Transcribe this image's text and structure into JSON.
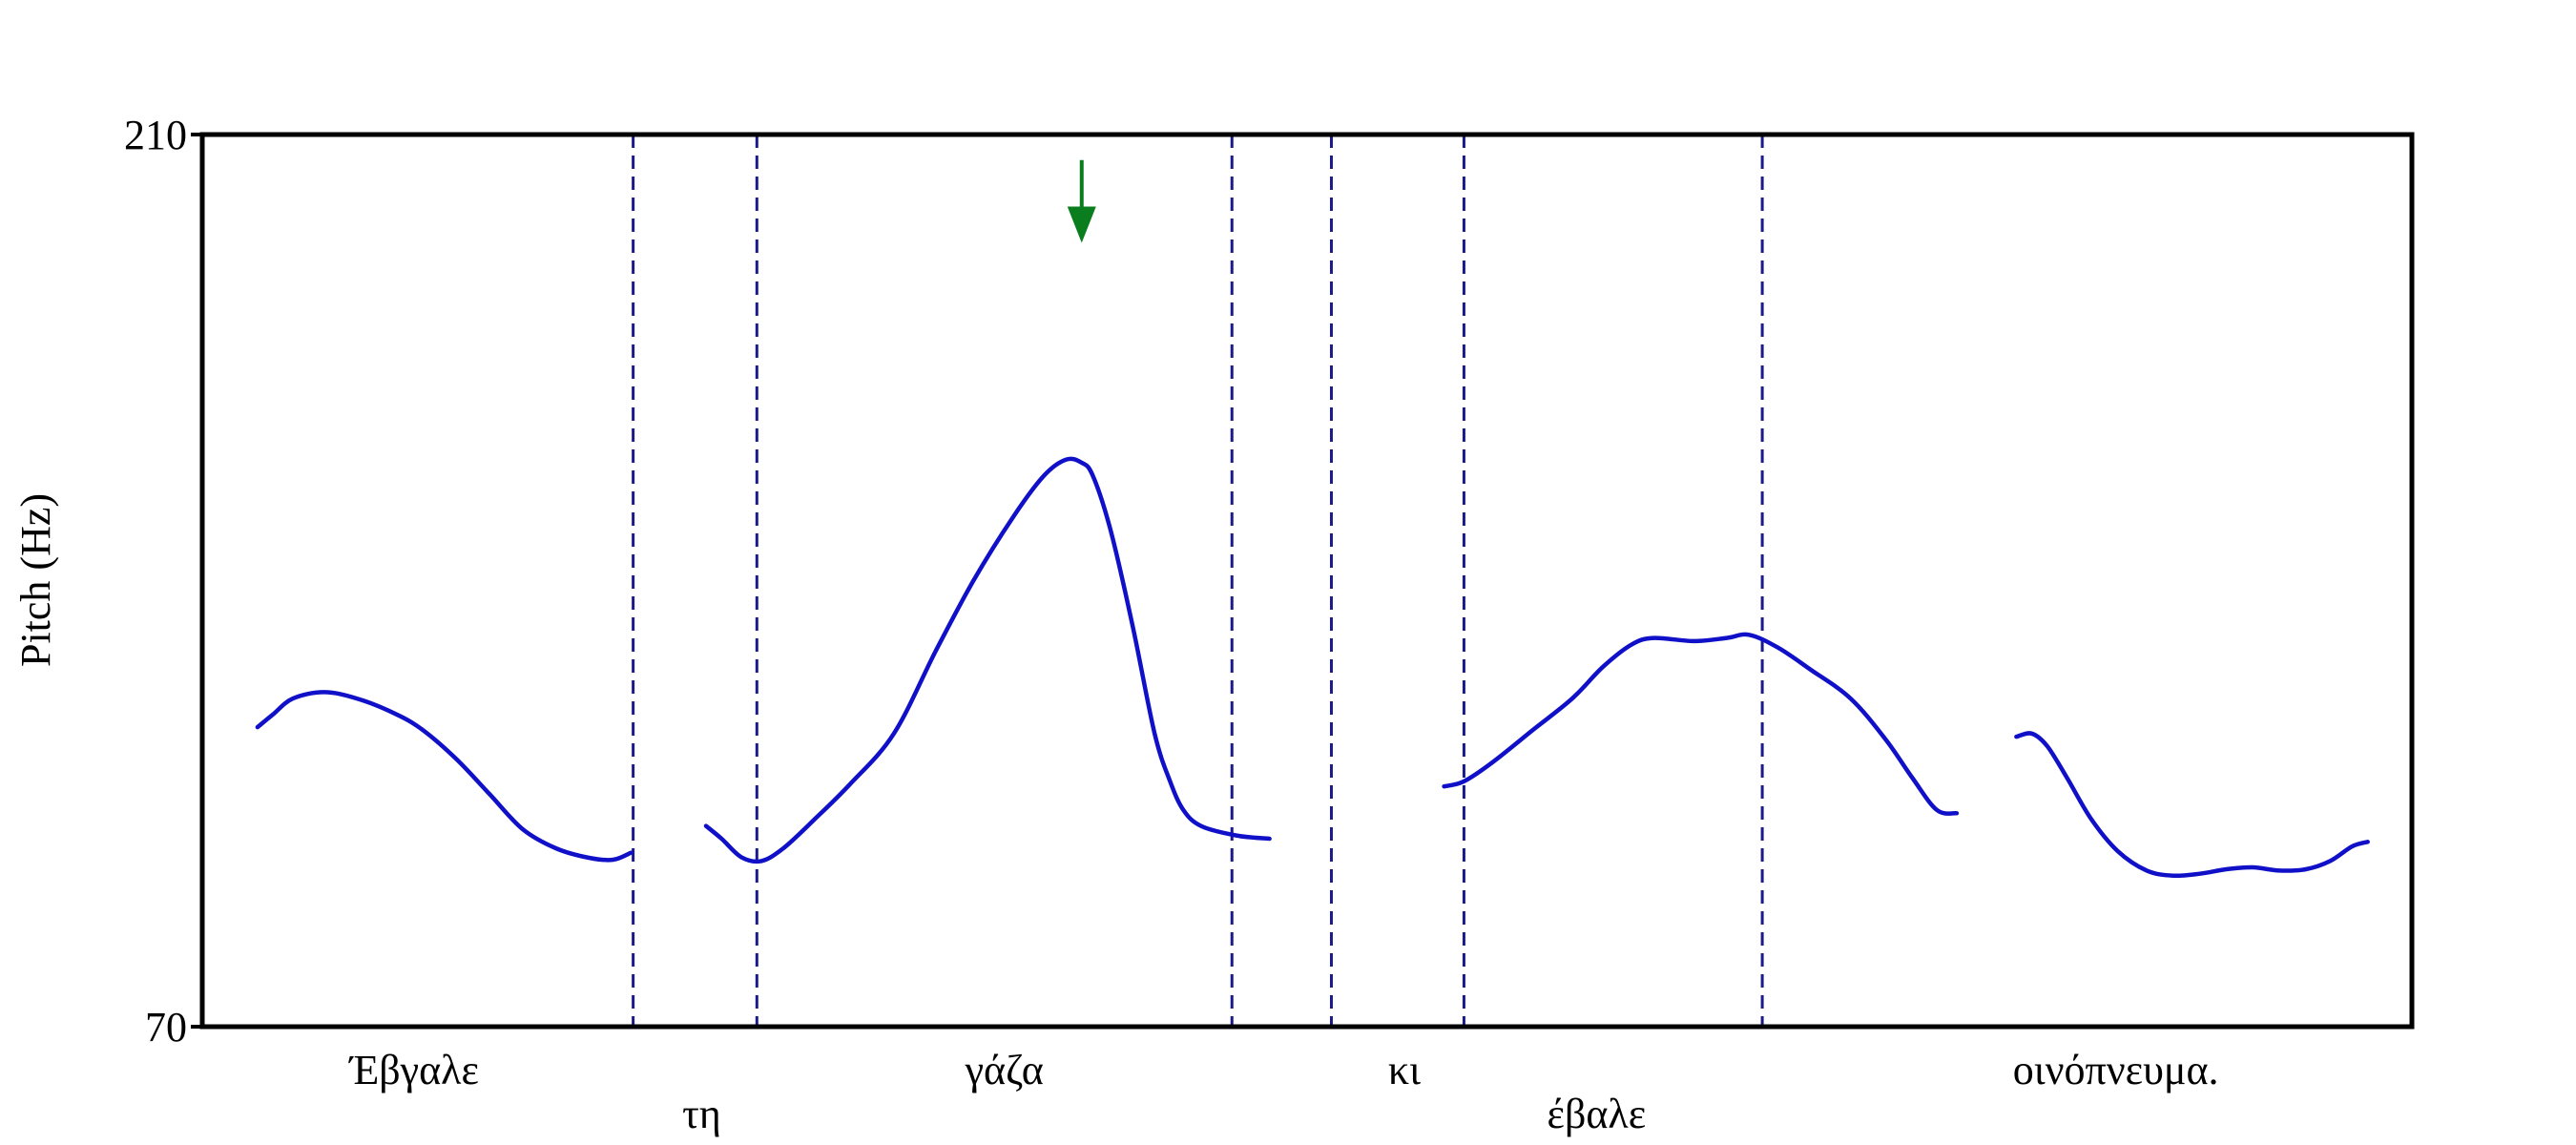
{
  "chart_data": {
    "type": "line",
    "title": "",
    "xlabel": "",
    "ylabel": "Pitch (Hz)",
    "ylim": [
      70,
      210
    ],
    "yticks": [
      "210",
      "70"
    ],
    "xlim": [
      0,
      100
    ],
    "grid": false,
    "legend": "none",
    "colors": {
      "curve": "#1010c8",
      "boundary": "#1a1a8c",
      "arrow": "#0a7d1e",
      "frame": "#000000"
    },
    "boundaries": [
      19.5,
      25.1,
      46.6,
      51.1,
      57.1,
      70.6
    ],
    "words": [
      {
        "text": "Έβγαλε",
        "x": 9.6,
        "row": 1
      },
      {
        "text": "τη",
        "x": 22.6,
        "row": 2
      },
      {
        "text": "γάζα",
        "x": 36.3,
        "row": 1
      },
      {
        "text": "κι",
        "x": 54.4,
        "row": 1
      },
      {
        "text": "έβαλε",
        "x": 63.1,
        "row": 2
      },
      {
        "text": "οινόπνευμα.",
        "x": 86.6,
        "row": 1
      }
    ],
    "arrow": {
      "x": 39.8,
      "y_top": 206,
      "y_bottom": 193
    },
    "series": [
      {
        "points": [
          [
            2.5,
            117
          ],
          [
            3.2,
            119
          ],
          [
            4.1,
            121.5
          ],
          [
            5.5,
            122.5
          ],
          [
            7.0,
            121.5
          ],
          [
            8.8,
            119
          ],
          [
            10.0,
            116.5
          ],
          [
            11.5,
            112
          ],
          [
            13.0,
            106.5
          ],
          [
            14.5,
            101
          ],
          [
            16.0,
            98
          ],
          [
            17.5,
            96.5
          ],
          [
            18.6,
            96.2
          ],
          [
            19.4,
            97.3
          ]
        ]
      },
      {
        "points": [
          [
            22.8,
            101.5
          ],
          [
            23.5,
            99.5
          ],
          [
            24.4,
            96.6
          ],
          [
            25.3,
            96
          ],
          [
            26.3,
            98
          ],
          [
            27.7,
            102.5
          ],
          [
            29.3,
            108
          ],
          [
            31.3,
            116
          ],
          [
            33.2,
            129
          ],
          [
            34.9,
            140
          ],
          [
            36.7,
            150
          ],
          [
            38.1,
            156.5
          ],
          [
            39.1,
            159
          ],
          [
            39.8,
            158.5
          ],
          [
            40.3,
            156.5
          ],
          [
            41.1,
            148
          ],
          [
            42.1,
            133
          ],
          [
            43.1,
            116
          ],
          [
            43.8,
            108.5
          ],
          [
            44.4,
            104
          ],
          [
            45.2,
            101.5
          ],
          [
            46.8,
            100
          ],
          [
            48.3,
            99.5
          ]
        ]
      },
      {
        "points": [
          [
            56.2,
            107.7
          ],
          [
            57.1,
            108.5
          ],
          [
            58.4,
            111.5
          ],
          [
            60.2,
            116.5
          ],
          [
            62.0,
            121.5
          ],
          [
            63.4,
            126.5
          ],
          [
            64.7,
            130
          ],
          [
            65.7,
            131
          ],
          [
            67.5,
            130.5
          ],
          [
            69.0,
            131
          ],
          [
            70.0,
            131.5
          ],
          [
            71.3,
            129.5
          ],
          [
            72.8,
            126
          ],
          [
            74.6,
            121.5
          ],
          [
            76.2,
            115
          ],
          [
            77.4,
            109
          ],
          [
            78.5,
            104
          ],
          [
            79.4,
            103.5
          ]
        ]
      },
      {
        "points": [
          [
            82.1,
            115.5
          ],
          [
            82.8,
            116
          ],
          [
            83.5,
            114
          ],
          [
            84.4,
            109
          ],
          [
            85.5,
            102.5
          ],
          [
            86.7,
            97.5
          ],
          [
            88.0,
            94.5
          ],
          [
            89.2,
            93.7
          ],
          [
            90.4,
            94
          ],
          [
            91.6,
            94.7
          ],
          [
            92.8,
            95
          ],
          [
            94.0,
            94.5
          ],
          [
            95.2,
            94.7
          ],
          [
            96.3,
            96
          ],
          [
            97.3,
            98.3
          ],
          [
            98.0,
            99
          ]
        ]
      }
    ]
  }
}
